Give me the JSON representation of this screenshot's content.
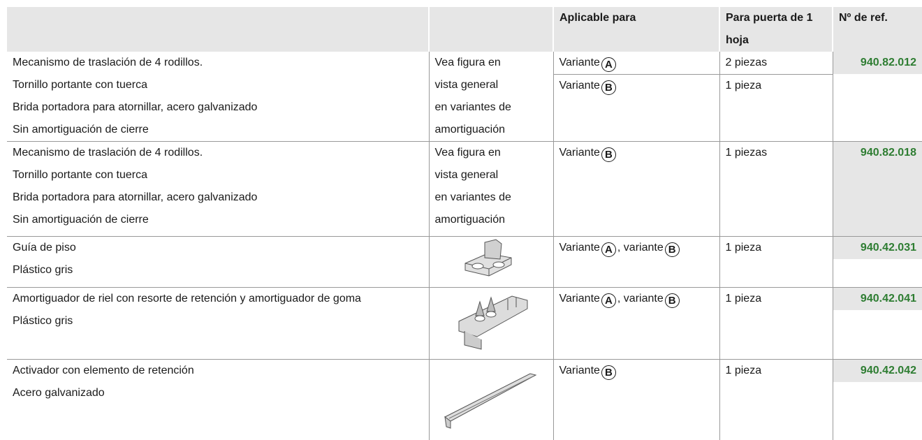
{
  "table": {
    "header": [
      "Aplicable para",
      "Para puerta de 1 hoja",
      "Nº de ref."
    ],
    "rows": [
      {
        "description": [
          "Mecanismo de traslación de 4 rodillos.",
          "Tornillo portante con tuerca",
          "Brida portadora para atornillar, acero galvanizado",
          "Sin amortiguación de cierre"
        ],
        "figure": [
          "Vea figura en",
          "vista general",
          "en variantes de",
          "amortiguación"
        ],
        "variants": [
          {
            "applicable": [
              "Variante",
              "A"
            ],
            "quantity": "2 piezas"
          },
          {
            "applicable": [
              "Variante",
              "B"
            ],
            "quantity": "1 pieza"
          }
        ],
        "ref": "940.82.012"
      },
      {
        "description": [
          "Mecanismo de traslación de 4 rodillos.",
          "Tornillo portante con tuerca",
          "Brida portadora para atornillar, acero galvanizado",
          "Sin amortiguación de cierre"
        ],
        "figure": [
          "Vea figura en",
          "vista general",
          "en variantes de",
          "amortiguación"
        ],
        "variants": [
          {
            "applicable": [
              "Variante",
              "B"
            ],
            "quantity": "1 piezas"
          }
        ],
        "ref": "940.82.018"
      },
      {
        "description": [
          "Guía de piso",
          "Plástico gris"
        ],
        "variants": [
          {
            "applicable": [
              "Variante",
              "A",
              ", variante",
              "B"
            ],
            "quantity": "1 pieza"
          }
        ],
        "ref": "940.42.031"
      },
      {
        "description": [
          "Amortiguador de riel con resorte de retención y amortiguador de goma",
          "Plástico gris"
        ],
        "variants": [
          {
            "applicable": [
              "Variante",
              "A",
              ", variante",
              "B"
            ],
            "quantity": "1 pieza"
          }
        ],
        "ref": "940.42.041"
      },
      {
        "description": [
          "Activador con elemento de retención",
          "Acero galvanizado"
        ],
        "variants": [
          {
            "applicable": [
              "Variante",
              "B"
            ],
            "quantity": "1 pieza"
          }
        ],
        "ref": "940.42.042"
      }
    ]
  }
}
